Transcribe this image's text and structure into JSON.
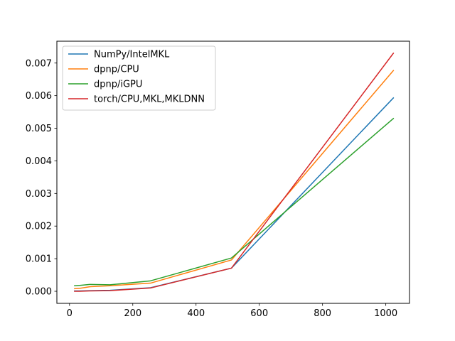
{
  "chart_data": {
    "type": "line",
    "title": "",
    "xlabel": "",
    "ylabel": "",
    "xlim": [
      -40,
      1075
    ],
    "ylim": [
      -0.00037,
      0.00767
    ],
    "xticks": [
      0,
      200,
      400,
      600,
      800,
      1000
    ],
    "xtick_labels": [
      "0",
      "200",
      "400",
      "600",
      "800",
      "1000"
    ],
    "yticks": [
      0.0,
      0.001,
      0.002,
      0.003,
      0.004,
      0.005,
      0.006,
      0.007
    ],
    "ytick_labels": [
      "0.000",
      "0.001",
      "0.002",
      "0.003",
      "0.004",
      "0.005",
      "0.006",
      "0.007"
    ],
    "grid": false,
    "legend_position": "top-left",
    "series": [
      {
        "name": "NumPy/IntelMKL",
        "color": "#1f77b4",
        "x": [
          16,
          32,
          64,
          128,
          256,
          512,
          1024
        ],
        "y": [
          1e-05,
          1e-05,
          2e-05,
          3e-05,
          0.00011,
          0.00071,
          0.00593
        ]
      },
      {
        "name": "dpnp/CPU",
        "color": "#ff7f0e",
        "x": [
          16,
          32,
          64,
          128,
          256,
          512,
          1024
        ],
        "y": [
          8e-05,
          9e-05,
          0.00014,
          0.00017,
          0.00025,
          0.00096,
          0.00677
        ]
      },
      {
        "name": "dpnp/iGPU",
        "color": "#2ca02c",
        "x": [
          16,
          32,
          64,
          128,
          256,
          512,
          1024
        ],
        "y": [
          0.00017,
          0.00018,
          0.00021,
          0.0002,
          0.00032,
          0.00102,
          0.0053
        ]
      },
      {
        "name": "torch/CPU,MKL,MKLDNN",
        "color": "#d62728",
        "x": [
          16,
          32,
          64,
          128,
          256,
          512,
          1024
        ],
        "y": [
          0.0,
          0.0,
          1e-05,
          2e-05,
          0.0001,
          0.00071,
          0.0073
        ]
      }
    ]
  }
}
